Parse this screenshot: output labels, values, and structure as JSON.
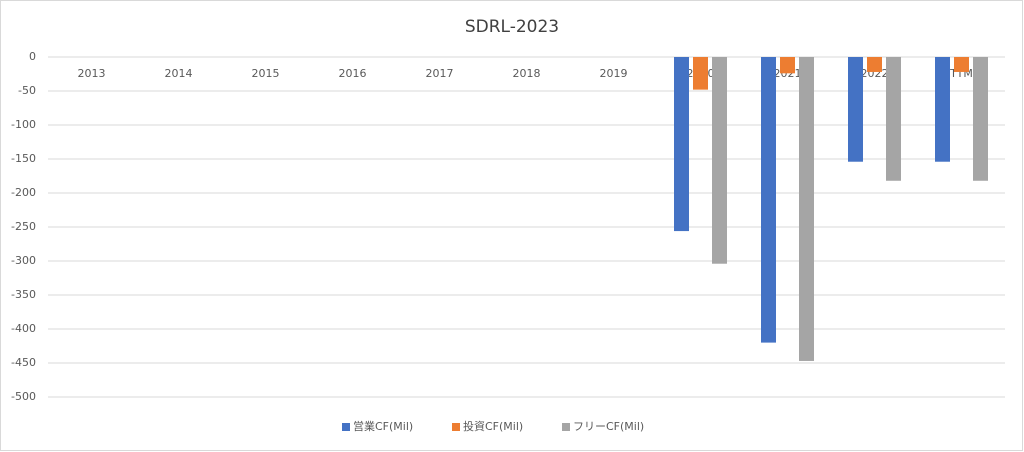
{
  "chart_data": {
    "type": "bar",
    "title": "SDRL-2023",
    "categories": [
      "2013",
      "2014",
      "2015",
      "2016",
      "2017",
      "2018",
      "2019",
      "2020",
      "2021",
      "2022",
      "TTM"
    ],
    "series": [
      {
        "name": "営業CF(Mil)",
        "color": "#4472c4",
        "values": [
          null,
          null,
          null,
          null,
          null,
          null,
          null,
          -256,
          -420,
          -154,
          -154
        ]
      },
      {
        "name": "投資CF(Mil)",
        "color": "#ed7d31",
        "values": [
          null,
          null,
          null,
          null,
          null,
          null,
          null,
          -48,
          -24,
          -22,
          -22
        ]
      },
      {
        "name": "フリーCF(Mil)",
        "color": "#a5a5a5",
        "values": [
          null,
          null,
          null,
          null,
          null,
          null,
          null,
          -304,
          -447,
          -182,
          -182
        ]
      }
    ],
    "ylim": [
      -500,
      0
    ],
    "yticks": [
      -500,
      -450,
      -400,
      -350,
      -300,
      -250,
      -200,
      -150,
      -100,
      -50,
      0
    ],
    "grid": true,
    "legend": "bottom"
  }
}
